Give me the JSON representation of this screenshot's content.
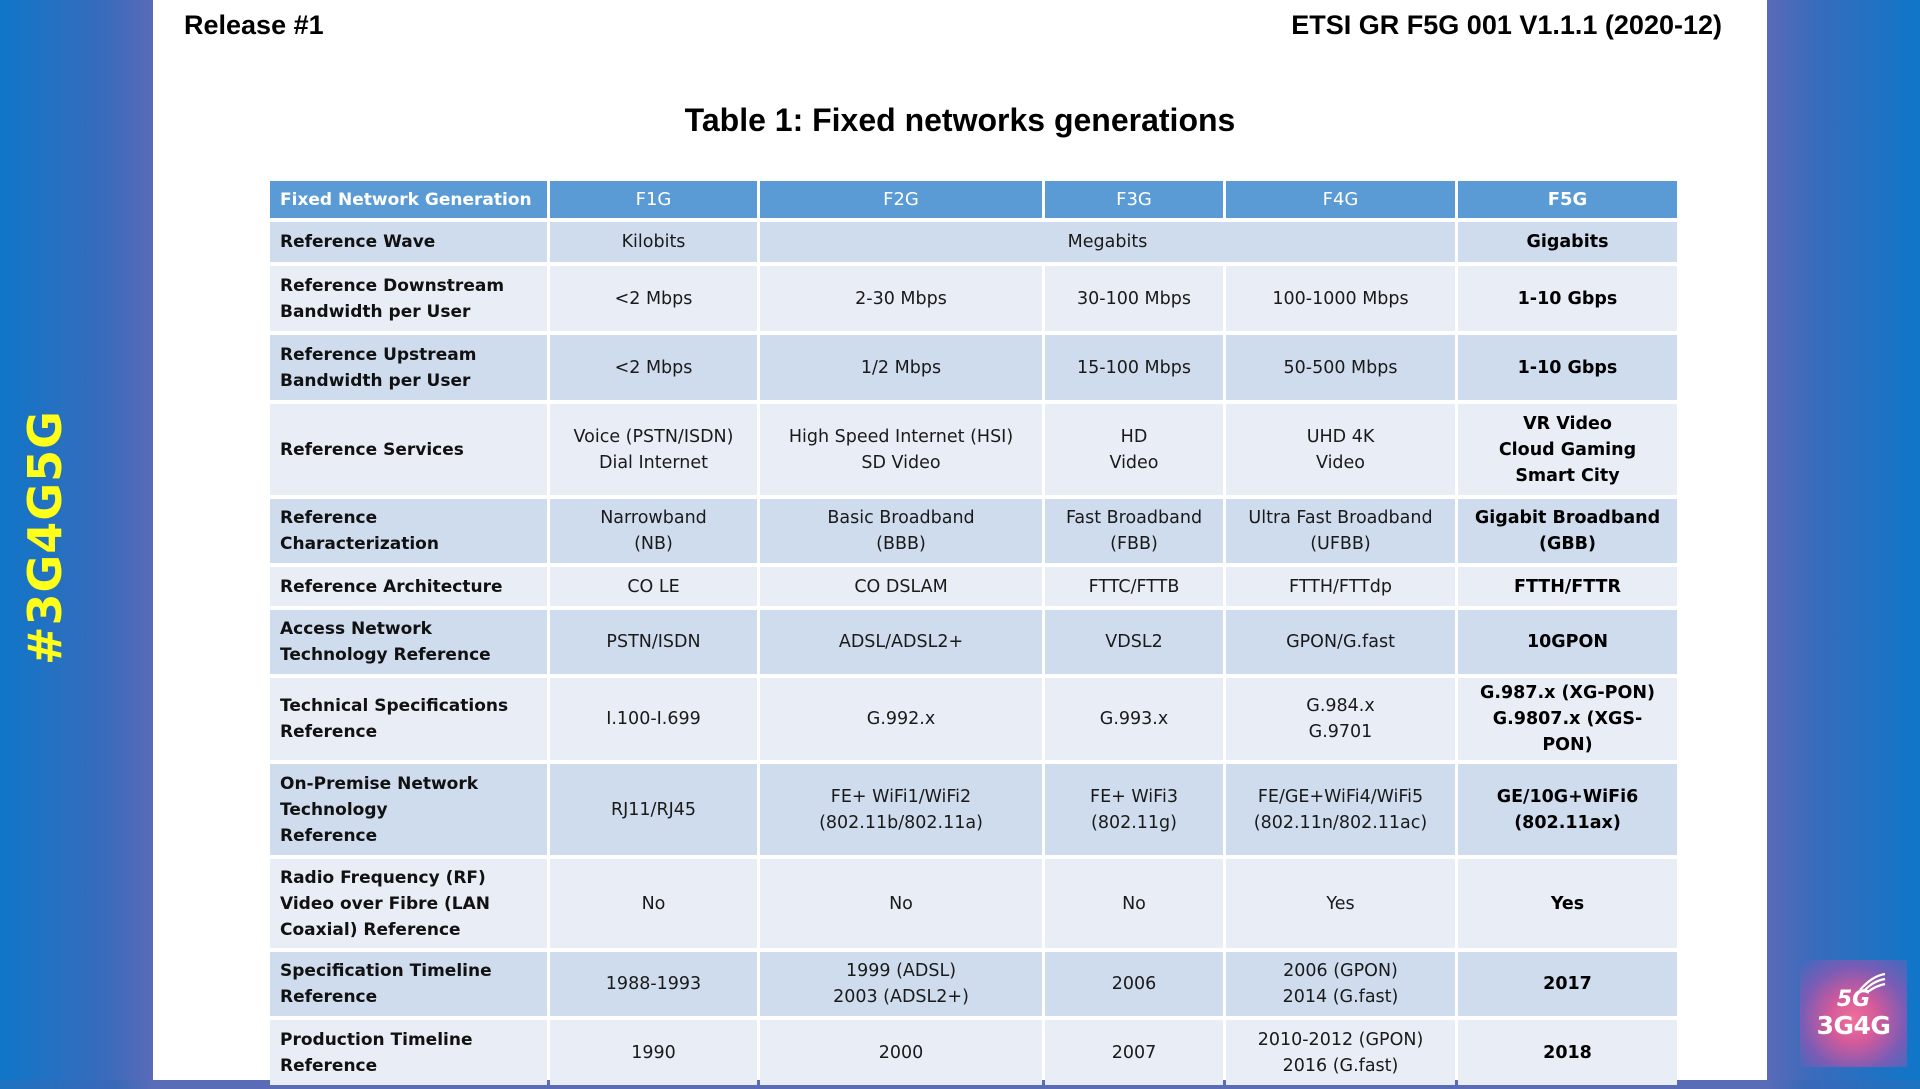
{
  "header": {
    "left": "Release #1",
    "right": "ETSI GR F5G 001 V1.1.1 (2020-12)"
  },
  "title": "Table 1: Fixed networks generations",
  "side": {
    "hashtag": "#3G4G5G",
    "logo_top": "5G",
    "logo_bottom": "3G4G"
  },
  "colors": {
    "header_bg": "#5b9bd5",
    "row_dark": "#cfdcee",
    "row_light": "#e8edf6",
    "hashtag": "#ffff1a",
    "background_blue": "#1d72c2"
  },
  "table": {
    "columns": [
      "Fixed Network Generation",
      "F1G",
      "F2G",
      "F3G",
      "F4G",
      "F5G"
    ],
    "rows": [
      {
        "label": [
          "Reference Wave"
        ],
        "cells": [
          [
            "Kilobits"
          ],
          [
            "Megabits"
          ],
          [
            "Gigabits"
          ]
        ],
        "spans": [
          1,
          3,
          1
        ]
      },
      {
        "label": [
          "Reference Downstream",
          "Bandwidth per User"
        ],
        "cells": [
          [
            "<2 Mbps"
          ],
          [
            "2-30 Mbps"
          ],
          [
            "30-100 Mbps"
          ],
          [
            "100-1000 Mbps"
          ],
          [
            "1-10 Gbps"
          ]
        ]
      },
      {
        "label": [
          "Reference Upstream",
          "Bandwidth per User"
        ],
        "cells": [
          [
            "<2 Mbps"
          ],
          [
            "1/2 Mbps"
          ],
          [
            "15-100 Mbps"
          ],
          [
            "50-500 Mbps"
          ],
          [
            "1-10 Gbps"
          ]
        ]
      },
      {
        "label": [
          "Reference Services"
        ],
        "cells": [
          [
            "Voice (PSTN/ISDN)",
            "Dial Internet"
          ],
          [
            "High Speed Internet (HSI)",
            "SD Video"
          ],
          [
            "HD",
            "Video"
          ],
          [
            "UHD 4K",
            "Video"
          ],
          [
            "VR Video",
            "Cloud Gaming",
            "Smart City"
          ]
        ]
      },
      {
        "label": [
          "Reference Characterization"
        ],
        "cells": [
          [
            "Narrowband",
            "(NB)"
          ],
          [
            "Basic Broadband",
            "(BBB)"
          ],
          [
            "Fast Broadband",
            "(FBB)"
          ],
          [
            "Ultra Fast Broadband",
            "(UFBB)"
          ],
          [
            "Gigabit Broadband",
            "(GBB)"
          ]
        ]
      },
      {
        "label": [
          "Reference Architecture"
        ],
        "cells": [
          [
            "CO LE"
          ],
          [
            "CO DSLAM"
          ],
          [
            "FTTC/FTTB"
          ],
          [
            "FTTH/FTTdp"
          ],
          [
            "FTTH/FTTR"
          ]
        ]
      },
      {
        "label": [
          "Access Network",
          "Technology Reference"
        ],
        "cells": [
          [
            "PSTN/ISDN"
          ],
          [
            "ADSL/ADSL2+"
          ],
          [
            "VDSL2"
          ],
          [
            "GPON/G.fast"
          ],
          [
            "10GPON"
          ]
        ]
      },
      {
        "label": [
          "Technical Specifications",
          "Reference"
        ],
        "cells": [
          [
            "I.100-I.699"
          ],
          [
            "G.992.x"
          ],
          [
            "G.993.x"
          ],
          [
            "G.984.x",
            "G.9701"
          ],
          [
            "G.987.x (XG-PON)",
            "G.9807.x (XGS-PON)"
          ]
        ]
      },
      {
        "label": [
          "On-Premise Network",
          "Technology",
          "Reference"
        ],
        "cells": [
          [
            "RJ11/RJ45"
          ],
          [
            "FE+ WiFi1/WiFi2",
            "(802.11b/802.11a)"
          ],
          [
            "FE+ WiFi3",
            "(802.11g)"
          ],
          [
            "FE/GE+WiFi4/WiFi5",
            "(802.11n/802.11ac)"
          ],
          [
            "GE/10G+WiFi6",
            "(802.11ax)"
          ]
        ]
      },
      {
        "label": [
          "Radio Frequency (RF)",
          "Video over Fibre (LAN",
          "Coaxial) Reference"
        ],
        "cells": [
          [
            "No"
          ],
          [
            "No"
          ],
          [
            "No"
          ],
          [
            "Yes"
          ],
          [
            "Yes"
          ]
        ]
      },
      {
        "label": [
          "Specification Timeline",
          "Reference"
        ],
        "cells": [
          [
            "1988-1993"
          ],
          [
            "1999 (ADSL)",
            "2003 (ADSL2+)"
          ],
          [
            "2006"
          ],
          [
            "2006 (GPON)",
            "2014 (G.fast)"
          ],
          [
            "2017"
          ]
        ]
      },
      {
        "label": [
          "Production Timeline",
          "Reference"
        ],
        "cells": [
          [
            "1990"
          ],
          [
            "2000"
          ],
          [
            "2007"
          ],
          [
            "2010-2012 (GPON)",
            "2016 (G.fast)"
          ],
          [
            "2018"
          ]
        ]
      }
    ]
  }
}
